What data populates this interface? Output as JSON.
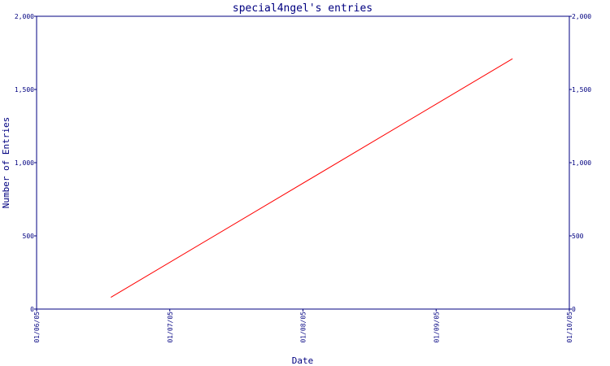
{
  "chart_data": {
    "type": "line",
    "title": "special4ngel's entries",
    "xlabel": "Date",
    "ylabel": "Number of Entries",
    "x_ticks": [
      "01/06/05",
      "01/07/05",
      "01/08/05",
      "01/09/05",
      "01/10/05"
    ],
    "y_ticks": [
      "0",
      "500",
      "1,000",
      "1,500",
      "2,000"
    ],
    "ylim": [
      0,
      2000
    ],
    "xlim": [
      "2005-06-01",
      "2005-10-01"
    ],
    "grid": false,
    "legend": "none",
    "colors": {
      "axis": "#000080",
      "series": "#ff0000",
      "background": "#ffffff"
    },
    "series": [
      {
        "x": [
          "2005-06-18",
          "2005-09-18"
        ],
        "y": [
          80,
          1710
        ]
      }
    ]
  }
}
